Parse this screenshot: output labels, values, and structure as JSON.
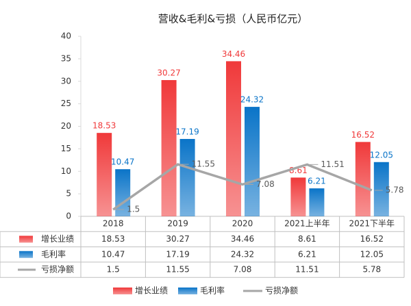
{
  "chart_data": {
    "type": "bar",
    "title": "营收&毛利&亏损（人民币亿元）",
    "categories": [
      "2018",
      "2019",
      "2020",
      "2021上半年",
      "2021下半年"
    ],
    "series": [
      {
        "name": "增长业绩",
        "type": "bar",
        "color": "#f0393a",
        "values": [
          18.53,
          30.27,
          34.46,
          8.61,
          16.52
        ]
      },
      {
        "name": "毛利率",
        "type": "bar",
        "color": "#0a74c8",
        "values": [
          10.47,
          17.19,
          24.32,
          6.21,
          12.05
        ]
      },
      {
        "name": "亏损净额",
        "type": "line",
        "color": "#a6a6a6",
        "values": [
          1.5,
          11.55,
          7.08,
          11.51,
          5.78
        ]
      }
    ],
    "ylim": [
      0,
      40
    ],
    "yticks": [
      0,
      5,
      10,
      15,
      20,
      25,
      30,
      35,
      40
    ],
    "legend": "bottom"
  }
}
